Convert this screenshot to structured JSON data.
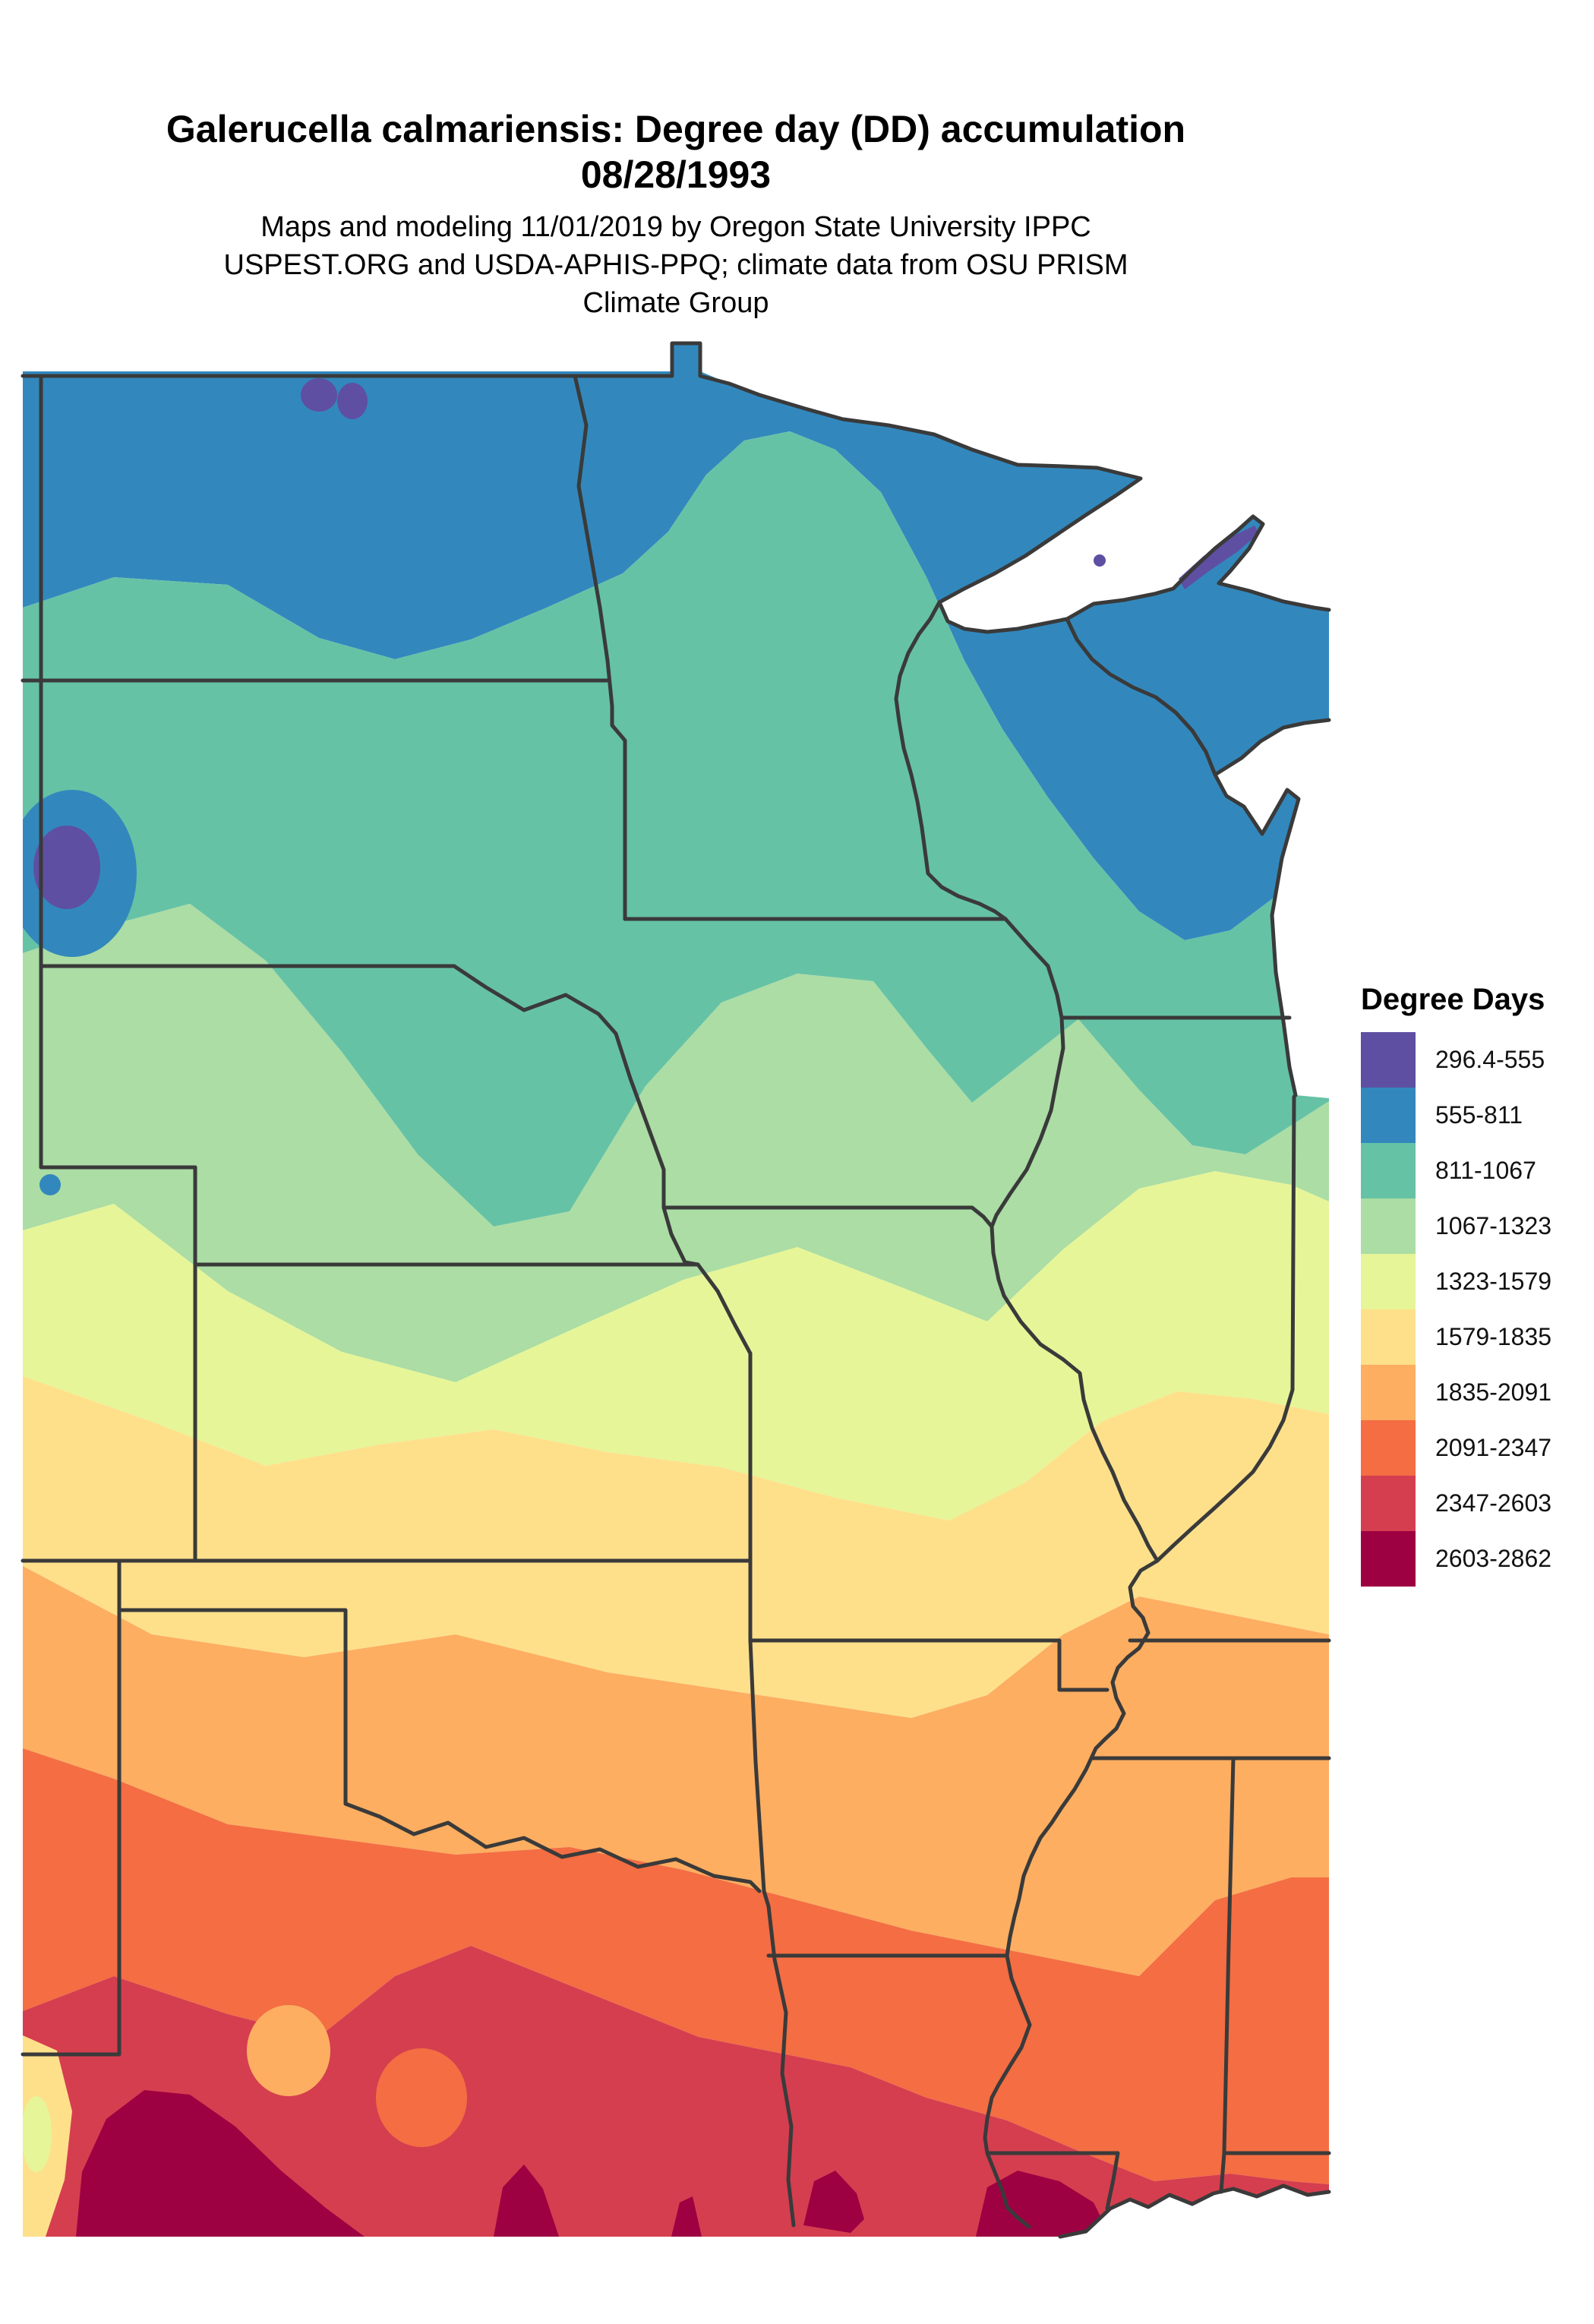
{
  "title": {
    "line1": "Galerucella calmariensis: Degree day (DD) accumulation",
    "line2": "08/28/1993"
  },
  "subtitle": {
    "line1": "Maps and modeling 11/01/2019 by Oregon State University IPPC",
    "line2": "USPEST.ORG and USDA-APHIS-PPQ; climate data from OSU PRISM",
    "line3": "Climate Group"
  },
  "legend": {
    "title": "Degree Days",
    "items": [
      {
        "label": "296.4-555",
        "color": "#5E4FA2"
      },
      {
        "label": "555-811",
        "color": "#3288BD"
      },
      {
        "label": "811-1067",
        "color": "#66C2A5"
      },
      {
        "label": "1067-1323",
        "color": "#ABDDA4"
      },
      {
        "label": "1323-1579",
        "color": "#E6F598"
      },
      {
        "label": "1579-1835",
        "color": "#FEE08B"
      },
      {
        "label": "1835-2091",
        "color": "#FDAE61"
      },
      {
        "label": "2091-2347",
        "color": "#F46D43"
      },
      {
        "label": "2347-2603",
        "color": "#D53E4F"
      },
      {
        "label": "2603-2862",
        "color": "#9E0142"
      }
    ]
  },
  "map": {
    "border_color": "#3a3a3a",
    "background_color": "#ffffff"
  }
}
